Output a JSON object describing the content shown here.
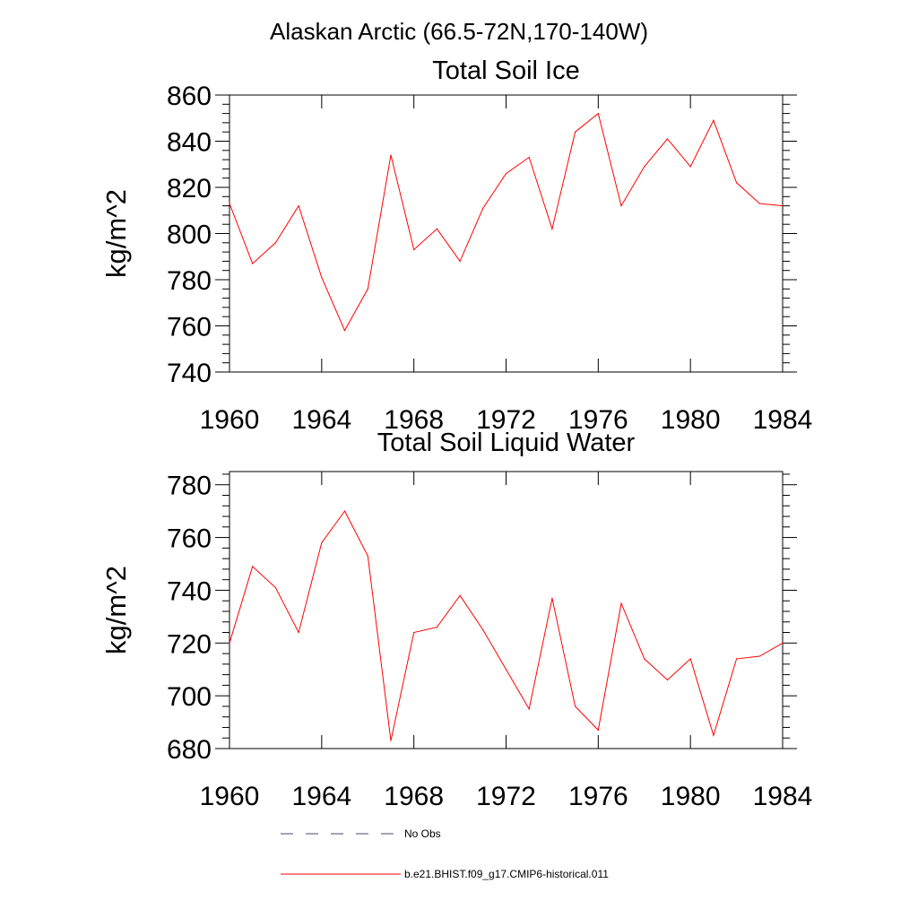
{
  "figure_title": "Alaskan Arctic (66.5-72N,170-140W)",
  "chart_data": [
    {
      "type": "line",
      "title": "Total Soil Ice",
      "xlabel": "",
      "ylabel": "kg/m^2",
      "xlim": [
        1960,
        1984
      ],
      "ylim": [
        740,
        860
      ],
      "x_ticks": [
        1960,
        1964,
        1968,
        1972,
        1976,
        1980,
        1984
      ],
      "y_ticks": [
        740,
        760,
        780,
        800,
        820,
        840,
        860
      ],
      "grid": false,
      "series": [
        {
          "name": "b.e21.BHIST.f09_g17.CMIP6-historical.011",
          "color": "#ff0000",
          "x": [
            1960,
            1961,
            1962,
            1963,
            1964,
            1965,
            1966,
            1967,
            1968,
            1969,
            1970,
            1971,
            1972,
            1973,
            1974,
            1975,
            1976,
            1977,
            1978,
            1979,
            1980,
            1981,
            1982,
            1983,
            1984
          ],
          "values": [
            813,
            787,
            796,
            812,
            781,
            758,
            776,
            834,
            793,
            802,
            788,
            811,
            826,
            833,
            802,
            844,
            852,
            812,
            829,
            841,
            829,
            849,
            822,
            813,
            812
          ]
        }
      ]
    },
    {
      "type": "line",
      "title": "Total Soil Liquid Water",
      "xlabel": "",
      "ylabel": "kg/m^2",
      "xlim": [
        1960,
        1984
      ],
      "ylim": [
        680,
        785
      ],
      "x_ticks": [
        1960,
        1964,
        1968,
        1972,
        1976,
        1980,
        1984
      ],
      "y_ticks": [
        680,
        700,
        720,
        740,
        760,
        780
      ],
      "grid": false,
      "series": [
        {
          "name": "b.e21.BHIST.f09_g17.CMIP6-historical.011",
          "color": "#ff0000",
          "x": [
            1960,
            1961,
            1962,
            1963,
            1964,
            1965,
            1966,
            1967,
            1968,
            1969,
            1970,
            1971,
            1972,
            1973,
            1974,
            1975,
            1976,
            1977,
            1978,
            1979,
            1980,
            1981,
            1982,
            1983,
            1984
          ],
          "values": [
            720,
            749,
            741,
            724,
            758,
            770,
            753,
            683,
            724,
            726,
            738,
            725,
            710,
            695,
            737,
            696,
            687,
            735,
            714,
            706,
            714,
            685,
            714,
            715,
            720
          ]
        }
      ]
    }
  ],
  "legend": [
    {
      "label": "No Obs",
      "style": "dashed",
      "color": "#4a4a6a"
    },
    {
      "label": "b.e21.BHIST.f09_g17.CMIP6-historical.011",
      "style": "solid",
      "color": "#ff0000"
    }
  ]
}
